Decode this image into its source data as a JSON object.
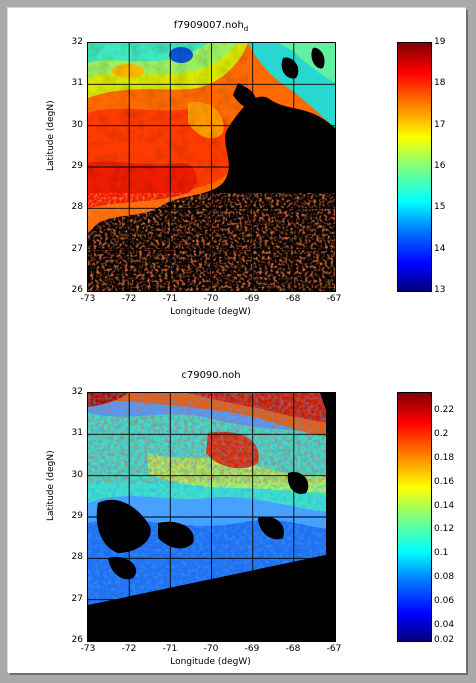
{
  "panels": [
    {
      "title": "f7909007.noh",
      "title_subscript": "d",
      "xlabel": "Longitude (degW)",
      "ylabel": "Latitude (degN)",
      "xticks": [
        "-73",
        "-72",
        "-71",
        "-70",
        "-69",
        "-68",
        "-67"
      ],
      "yticks": [
        "32",
        "31",
        "30",
        "29",
        "28",
        "27",
        "26"
      ],
      "colorbar_ticks": [
        "19",
        "18",
        "17",
        "16",
        "15",
        "14",
        "13"
      ],
      "colormap": "jet",
      "missing_color": "#000000"
    },
    {
      "title": "c79090.noh",
      "title_subscript": "",
      "xlabel": "Longitude (degW)",
      "ylabel": "Latitude (degN)",
      "xticks": [
        "-73",
        "-72",
        "-71",
        "-70",
        "-69",
        "-68",
        "-67"
      ],
      "yticks": [
        "32",
        "31",
        "30",
        "29",
        "28",
        "27",
        "26"
      ],
      "colorbar_ticks": [
        "0.22",
        "0.2",
        "0.18",
        "0.16",
        "0.14",
        "0.12",
        "0.1",
        "0.08",
        "0.06",
        "0.04",
        "0.02"
      ],
      "colormap": "jet",
      "missing_color": "#000000"
    }
  ]
}
